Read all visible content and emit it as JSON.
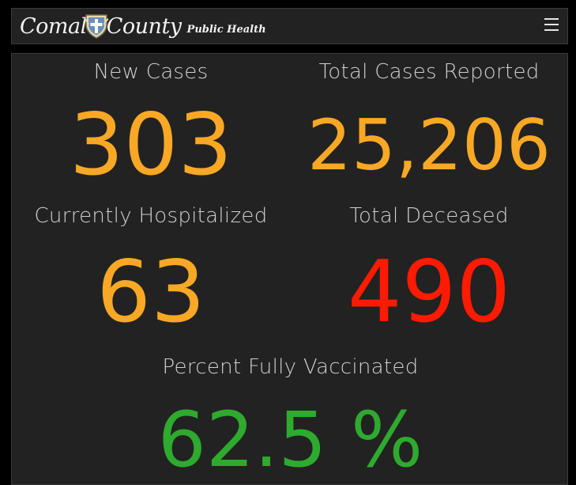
{
  "header": {
    "logo_word_1": "Comal",
    "logo_word_2": "County",
    "logo_subtitle": "Public Health",
    "logo_seal_icon": "county-seal-icon",
    "menu_icon": "hamburger-menu-icon"
  },
  "stats": {
    "new_cases": {
      "label": "New Cases",
      "value": "303",
      "color": "#f9a825"
    },
    "total_cases": {
      "label": "Total Cases Reported",
      "value": "25,206",
      "color": "#f9a825"
    },
    "hospitalized": {
      "label": "Currently Hospitalized",
      "value": "63",
      "color": "#f9a825"
    },
    "deceased": {
      "label": "Total Deceased",
      "value": "490",
      "color": "#ff1a00"
    },
    "vaccinated": {
      "label": "Percent Fully Vaccinated",
      "value": "62.5 %",
      "color": "#2eaa2e"
    }
  },
  "colors": {
    "background": "#000000",
    "panel": "#222222",
    "label_text": "#cfcfcf"
  }
}
